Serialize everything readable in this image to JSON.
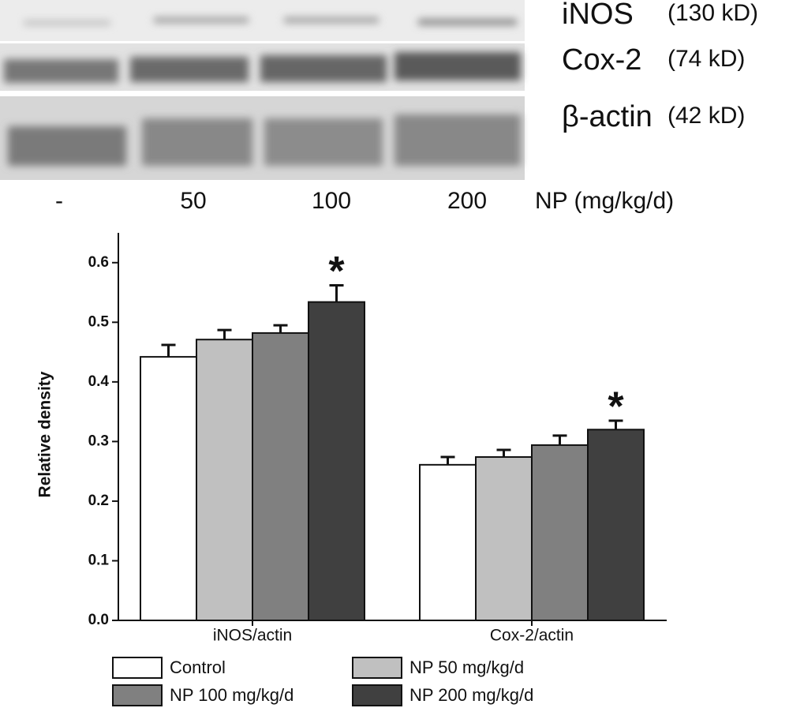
{
  "blot": {
    "bands": [
      {
        "name": "iNOS",
        "size": "(130 kD)"
      },
      {
        "name": "Cox-2",
        "size": "(74 kD)"
      },
      {
        "name": "β-actin",
        "size": "(42 kD)"
      }
    ],
    "lanes": [
      "-",
      "50",
      "100",
      "200"
    ],
    "lane_title": "NP (mg/kg/d)"
  },
  "chart_data": {
    "type": "bar",
    "ylabel": "Relative density",
    "categories": [
      "iNOS/actin",
      "Cox-2/actin"
    ],
    "series": [
      {
        "name": "Control",
        "color": "#ffffff",
        "values": [
          0.442,
          0.261
        ],
        "errors": [
          0.02,
          0.013
        ]
      },
      {
        "name": "NP 50 mg/kg/d",
        "color": "#c0c0c0",
        "values": [
          0.471,
          0.274
        ],
        "errors": [
          0.016,
          0.012
        ]
      },
      {
        "name": "NP 100 mg/kg/d",
        "color": "#808080",
        "values": [
          0.482,
          0.294
        ],
        "errors": [
          0.013,
          0.016
        ]
      },
      {
        "name": "NP 200 mg/kg/d",
        "color": "#404040",
        "values": [
          0.534,
          0.32
        ],
        "errors": [
          0.028,
          0.015
        ]
      }
    ],
    "annotations": [
      "*",
      "*"
    ],
    "ylim": [
      0,
      0.65
    ],
    "yticks": [
      {
        "value": 0,
        "label": "0.0"
      },
      0.1,
      0.2,
      0.3,
      0.4,
      0.5,
      0.6
    ]
  }
}
